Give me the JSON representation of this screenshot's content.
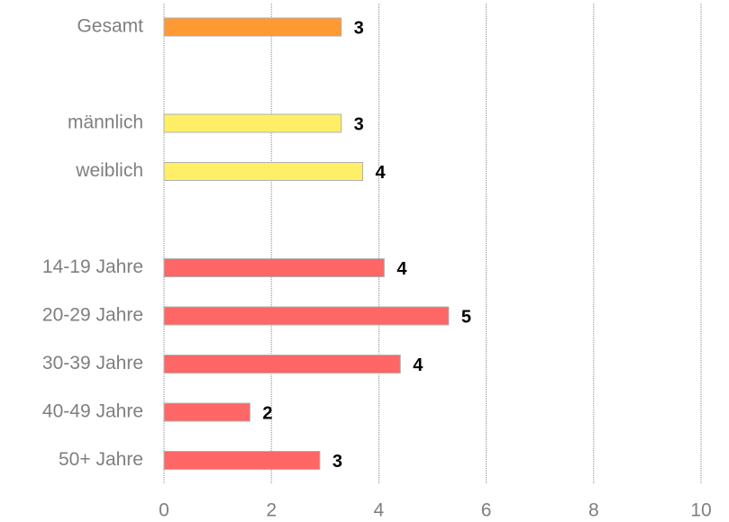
{
  "chart_data": {
    "type": "barh",
    "categories": [
      "Gesamt",
      null,
      "männlich",
      "weiblich",
      null,
      "14-19 Jahre",
      "20-29 Jahre",
      "30-39 Jahre",
      "40-49 Jahre",
      "50+ Jahre"
    ],
    "values": [
      3.3,
      null,
      3.3,
      3.7,
      null,
      4.1,
      5.3,
      4.4,
      1.6,
      2.9
    ],
    "value_labels": [
      "3",
      null,
      "3",
      "4",
      null,
      "4",
      "5",
      "4",
      "2",
      "3"
    ],
    "colors": [
      "#ff9933",
      null,
      "#ffef66",
      "#ffef66",
      null,
      "#ff6666",
      "#ff6666",
      "#ff6666",
      "#ff6666",
      "#ff6666"
    ],
    "xlim": [
      0,
      10
    ],
    "xticks": [
      0,
      2,
      4,
      6,
      8,
      10
    ],
    "grid": true
  }
}
